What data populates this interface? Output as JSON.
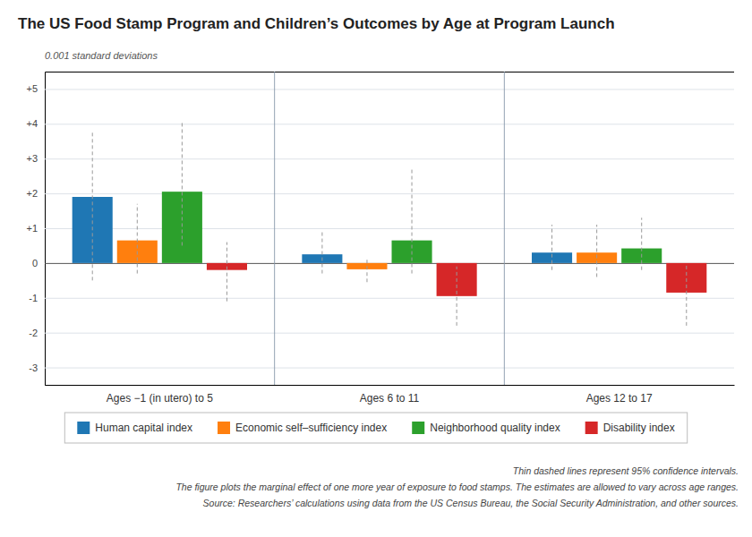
{
  "chart_data": {
    "type": "bar",
    "title": "The US Food Stamp Program and Children’s Outcomes by Age at Program Launch",
    "ylabel": "0.001 standard deviations",
    "categories": [
      "Ages −1 (in utero) to 5",
      "Ages 6 to 11",
      "Ages 12 to 17"
    ],
    "series": [
      {
        "name": "Human capital index",
        "values": [
          1.9,
          0.25,
          0.3
        ],
        "ci_low": [
          -0.5,
          -0.3,
          -0.2
        ],
        "ci_high": [
          3.8,
          0.9,
          1.1
        ]
      },
      {
        "name": "Economic self–sufficiency index",
        "values": [
          0.65,
          -0.18,
          0.3
        ],
        "ci_low": [
          -0.3,
          -0.55,
          -0.4
        ],
        "ci_high": [
          1.7,
          0.15,
          1.1
        ]
      },
      {
        "name": "Neighborhood quality index",
        "values": [
          2.05,
          0.65,
          0.42
        ],
        "ci_low": [
          0.5,
          -0.3,
          -0.2
        ],
        "ci_high": [
          4.1,
          2.7,
          1.3
        ]
      },
      {
        "name": "Disability index",
        "values": [
          -0.2,
          -0.95,
          -0.85
        ],
        "ci_low": [
          -1.1,
          -1.8,
          -1.8
        ],
        "ci_high": [
          0.6,
          -0.1,
          -0.05
        ]
      }
    ],
    "ylim": [
      -3.5,
      5.5
    ],
    "yticks": [
      -3,
      -2,
      -1,
      0,
      {
        "value": 1,
        "label": "+1"
      },
      {
        "value": 2,
        "label": "+2"
      },
      {
        "value": 3,
        "label": "+3"
      },
      {
        "value": 4,
        "label": "+4"
      },
      {
        "value": 5,
        "label": "+5"
      }
    ],
    "grid": true,
    "legend": "bottom",
    "annotations": [
      "Thin dashed lines represent 95% confidence intervals.",
      "The figure plots the marginal effect of one more year of exposure to food stamps. The estimates are allowed to vary across age ranges.",
      "Source: Researchers’ calculations using data from the US Census Bureau, the Social Security Administration, and other sources."
    ]
  }
}
